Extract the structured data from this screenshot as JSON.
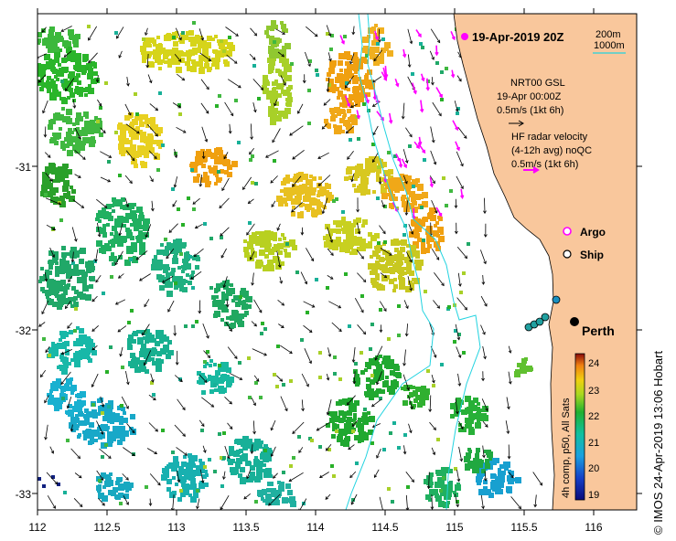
{
  "map": {
    "date_title": "19-Apr-2019 20Z",
    "lon_ticks": [
      "112",
      "112.5",
      "113",
      "113.5",
      "114",
      "114.5",
      "115",
      "115.5",
      "116"
    ],
    "lat_ticks": [
      "-31",
      "-32",
      "-33"
    ],
    "isobath_legend": {
      "a": "200m",
      "b": "1000m"
    },
    "model": {
      "line1": "NRT00 GSL",
      "line2": "19-Apr 00:00Z",
      "scale": "0.5m/s (1kt 6h)"
    },
    "radar": {
      "line1": "HF radar velocity",
      "line2": "(4-12h avg) noQC",
      "scale": "0.5m/s (1kt 6h)"
    },
    "markers": {
      "argo": "Argo",
      "ship": "Ship"
    },
    "city": "Perth",
    "colorbar": {
      "ticks": [
        "24",
        "23",
        "22",
        "21",
        "20",
        "19"
      ],
      "label": "4h comp, p50, All Sats"
    },
    "credit": "© IMOS 24-Apr-2019 13:06 Hobart",
    "colors": {
      "land": "#f9c79c",
      "isobath": "#22d3e0",
      "radar_arrow": "#ff00ff"
    }
  }
}
